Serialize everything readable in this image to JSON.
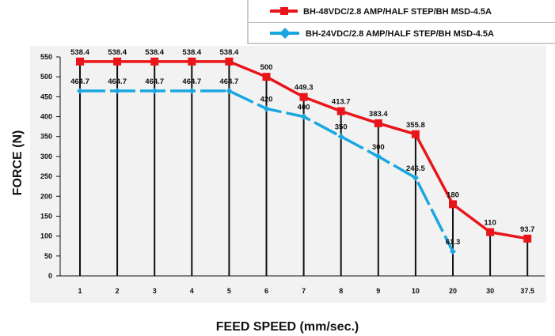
{
  "chart_data": {
    "type": "line",
    "categories": [
      "1",
      "2",
      "3",
      "4",
      "5",
      "6",
      "7",
      "8",
      "9",
      "10",
      "20",
      "30",
      "37.5"
    ],
    "ylim": [
      0,
      550
    ],
    "yticks": [
      0,
      50,
      100,
      150,
      200,
      250,
      300,
      350,
      400,
      450,
      500,
      550
    ],
    "xlabel": "FEED SPEED (mm/sec.)",
    "ylabel": "FORCE (N)",
    "grid": false,
    "legend_position": "top-right",
    "series": [
      {
        "name": "BH-48VDC/2.8 AMP/HALF STEP/BH MSD-4.5A",
        "color": "#e8161b",
        "marker": "square",
        "values": [
          538.4,
          538.4,
          538.4,
          538.4,
          538.4,
          500,
          449.3,
          413.7,
          383.4,
          355.8,
          180,
          110,
          93.7
        ]
      },
      {
        "name": "BH-24VDC/2.8 AMP/HALF STEP/BH MSD-4.5A",
        "color": "#1aa7e0",
        "marker": "diamond",
        "values": [
          464.7,
          464.7,
          464.7,
          464.7,
          464.7,
          420,
          400,
          350,
          300,
          246.5,
          61.3,
          null,
          null
        ]
      }
    ]
  }
}
